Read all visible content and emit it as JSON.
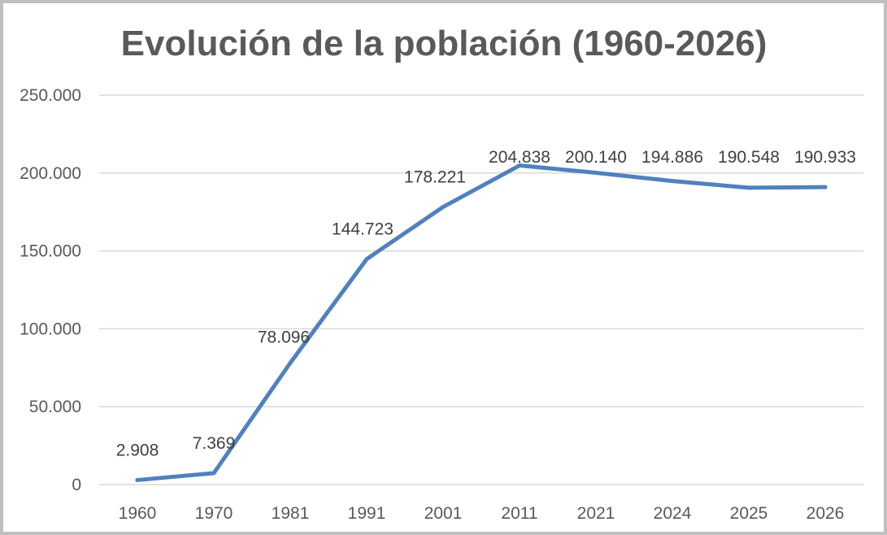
{
  "chart_data": {
    "type": "line",
    "title": "Evolución de la población (1960-2026)",
    "xlabel": "",
    "ylabel": "",
    "categories": [
      "1960",
      "1970",
      "1981",
      "1991",
      "2001",
      "2011",
      "2021",
      "2024",
      "2025",
      "2026"
    ],
    "values": [
      2908,
      7369,
      78096,
      144723,
      178221,
      204838,
      200140,
      194886,
      190548,
      190933
    ],
    "data_labels": [
      "2.908",
      "7.369",
      "78.096",
      "144.723",
      "178.221",
      "204.838",
      "200.140",
      "194.886",
      "190.548",
      "190.933"
    ],
    "ylim": [
      0,
      250000
    ],
    "y_ticks": [
      0,
      50000,
      100000,
      150000,
      200000,
      250000
    ],
    "y_tick_labels": [
      "0",
      "50.000",
      "100.000",
      "150.000",
      "200.000",
      "250.000"
    ],
    "grid": true,
    "legend": "none",
    "line_color": "#4f81bd",
    "gridline_color": "#d9d9d9",
    "text_color": "#595959"
  }
}
